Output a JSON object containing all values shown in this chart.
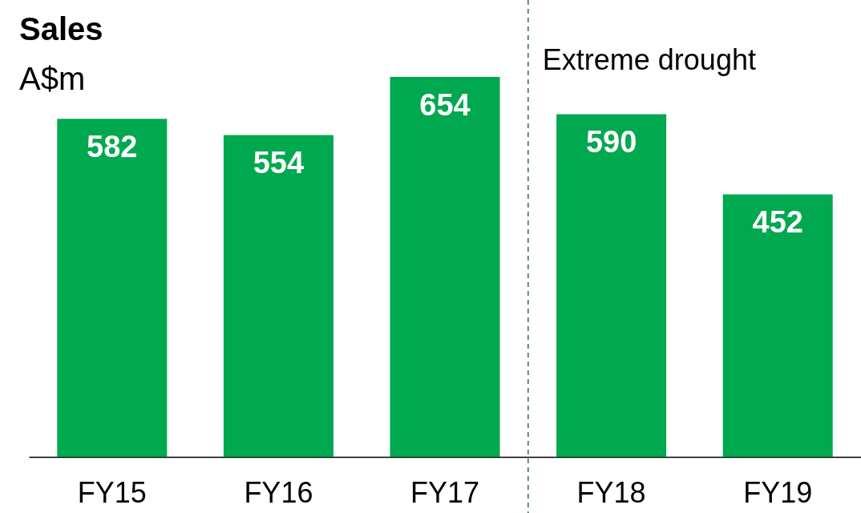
{
  "chart_data": {
    "type": "bar",
    "title": "Sales",
    "subtitle": "A$m",
    "categories": [
      "FY15",
      "FY16",
      "FY17",
      "FY18",
      "FY19"
    ],
    "values": [
      582,
      554,
      654,
      590,
      452
    ],
    "color": "#00a84f",
    "data_labels": true,
    "ref_lines": [
      {
        "axis": "x",
        "value": "FY18",
        "label": "Extreme drought",
        "color": "#2e6b55",
        "line_style": "dashed"
      }
    ]
  }
}
